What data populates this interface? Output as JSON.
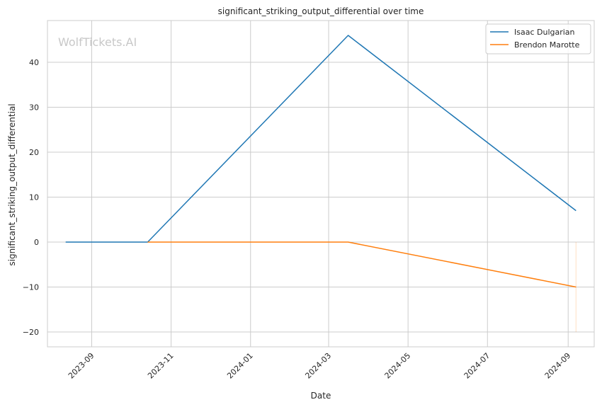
{
  "chart_data": {
    "type": "line",
    "title": "significant_striking_output_differential over time",
    "xlabel": "Date",
    "ylabel": "significant_striking_output_differential",
    "watermark": "WolfTickets.AI",
    "x_ticks": [
      "2023-09",
      "2023-11",
      "2024-01",
      "2024-03",
      "2024-05",
      "2024-07",
      "2024-09"
    ],
    "y_ticks": [
      40,
      30,
      20,
      10,
      0,
      -10,
      -20
    ],
    "ylim": [
      -23.3,
      49.3
    ],
    "xlim": [
      "2023-07-29",
      "2024-09-21"
    ],
    "grid": true,
    "legend_position": "top-right",
    "series": [
      {
        "name": "Isaac Dulgarian",
        "color": "#1f77b4",
        "x": [
          "2023-08-12",
          "2023-10-14",
          "2024-03-16",
          "2024-09-07"
        ],
        "y": [
          0,
          0,
          46,
          7
        ]
      },
      {
        "name": "Brendon Marotte",
        "color": "#ff7f0e",
        "x": [
          "2023-10-14",
          "2024-03-16",
          "2024-09-07"
        ],
        "y": [
          0,
          0,
          -10
        ]
      }
    ]
  }
}
